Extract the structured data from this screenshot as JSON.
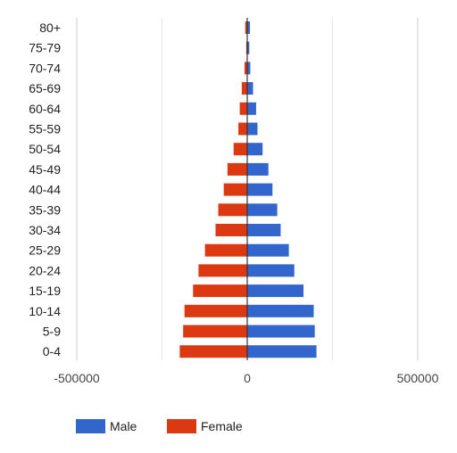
{
  "chart_data": {
    "type": "bar",
    "orientation": "horizontal",
    "stacked": true,
    "categories": [
      "80+",
      "75-79",
      "70-74",
      "65-69",
      "60-64",
      "55-59",
      "50-54",
      "45-49",
      "40-44",
      "35-39",
      "30-34",
      "25-29",
      "20-24",
      "15-19",
      "10-14",
      "5-9",
      "0-4"
    ],
    "series": [
      {
        "name": "Male",
        "color": "#3366cc",
        "values": [
          8000,
          6000,
          9000,
          17000,
          26000,
          30000,
          45000,
          62000,
          74000,
          88000,
          98000,
          122000,
          138000,
          165000,
          195000,
          198000,
          203000
        ]
      },
      {
        "name": "Female",
        "color": "#dc3912",
        "values": [
          -6000,
          -3000,
          -8000,
          -16000,
          -22000,
          -26000,
          -40000,
          -58000,
          -69000,
          -85000,
          -93000,
          -124000,
          -143000,
          -159000,
          -184000,
          -188000,
          -198000
        ]
      }
    ],
    "xlim": [
      -500000,
      500000
    ],
    "x_ticks": [
      -500000,
      0,
      500000
    ],
    "x_tick_labels": [
      "-500000",
      "0",
      "500000"
    ],
    "grid": true,
    "legend_position": "bottom-left",
    "title": "",
    "xlabel": "",
    "ylabel": ""
  }
}
